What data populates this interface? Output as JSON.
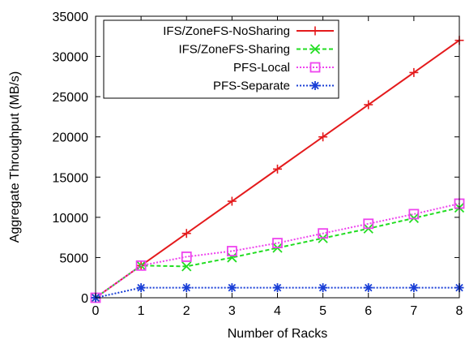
{
  "chart_data": {
    "type": "line",
    "title": "",
    "xlabel": "Number of Racks",
    "ylabel": "Aggregate Throughput (MB/s)",
    "xlim": [
      0,
      8
    ],
    "ylim": [
      0,
      35000
    ],
    "x_ticks": [
      "0",
      "1",
      "2",
      "3",
      "4",
      "5",
      "6",
      "7",
      "8"
    ],
    "y_ticks": [
      "0",
      "5000",
      "10000",
      "15000",
      "20000",
      "25000",
      "30000",
      "35000"
    ],
    "grid": false,
    "legend_position": "top-left",
    "x": [
      0,
      1,
      2,
      3,
      4,
      5,
      6,
      7,
      8
    ],
    "series": [
      {
        "name": "IFS/ZoneFS-NoSharing",
        "values": [
          0,
          4000,
          8000,
          12000,
          16000,
          20000,
          24000,
          28000,
          32000
        ],
        "color": "#e41a1c",
        "line_style": "solid",
        "marker": "plus"
      },
      {
        "name": "IFS/ZoneFS-Sharing",
        "values": [
          0,
          4000,
          3900,
          5000,
          6200,
          7400,
          8600,
          9900,
          11200
        ],
        "color": "#22dd22",
        "line_style": "dashed",
        "marker": "x"
      },
      {
        "name": "PFS-Local",
        "values": [
          0,
          4000,
          5100,
          5800,
          6800,
          8000,
          9200,
          10400,
          11700
        ],
        "color": "#ee44ee",
        "line_style": "dotted",
        "marker": "square"
      },
      {
        "name": "PFS-Separate",
        "values": [
          0,
          1250,
          1250,
          1250,
          1250,
          1250,
          1250,
          1250,
          1250
        ],
        "color": "#1a3fd6",
        "line_style": "dotted",
        "marker": "star"
      }
    ]
  }
}
